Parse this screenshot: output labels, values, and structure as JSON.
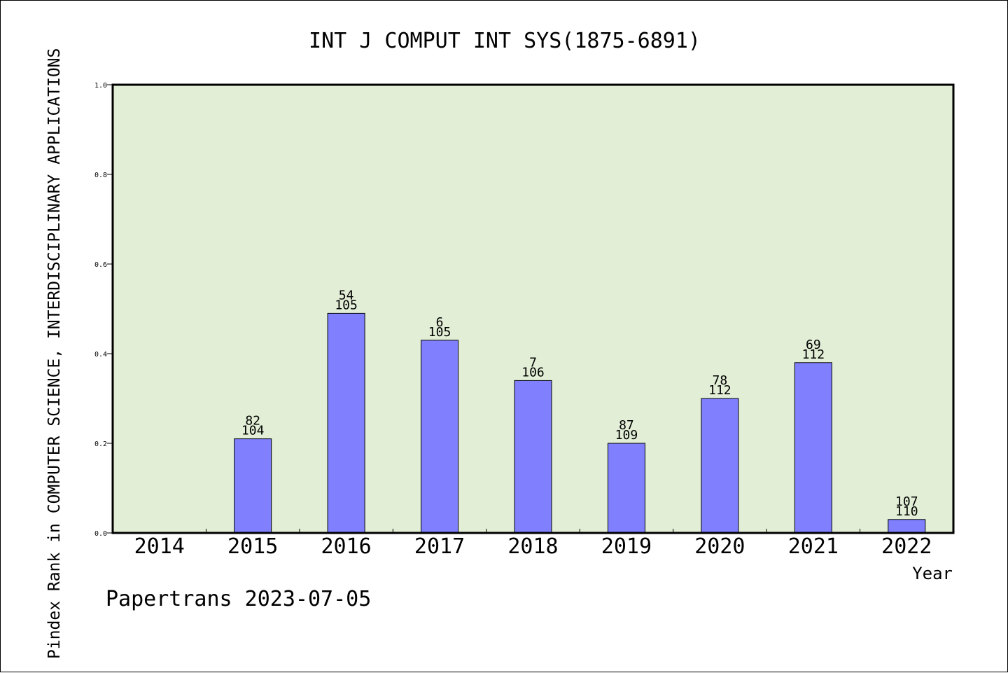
{
  "chart_data": {
    "type": "bar",
    "title": "INT J COMPUT INT SYS(1875-6891)",
    "xlabel": "Year",
    "ylabel": "Pindex Rank in COMPUTER SCIENCE, INTERDISCIPLINARY APPLICATIONS",
    "ylim": [
      0,
      1.0
    ],
    "yticks": [
      "0.0",
      "0.2",
      "0.4",
      "0.6",
      "0.8",
      "1.0"
    ],
    "categories": [
      "2014",
      "2015",
      "2016",
      "2017",
      "2018",
      "2019",
      "2020",
      "2021",
      "2022"
    ],
    "values": [
      null,
      0.21,
      0.49,
      0.43,
      0.34,
      0.2,
      0.3,
      0.38,
      0.03
    ],
    "labels_top": [
      "",
      "82",
      "54",
      "6",
      "7",
      "87",
      "78",
      "69",
      "107"
    ],
    "labels_bottom": [
      "",
      "104",
      "105",
      "105",
      "106",
      "109",
      "112",
      "112",
      "110"
    ],
    "grid": false,
    "colors": {
      "plot_background": "#e2efd6",
      "bar_fill": "#8080ff",
      "bar_stroke": "#000000"
    }
  },
  "footer": "Papertrans 2023-07-05"
}
